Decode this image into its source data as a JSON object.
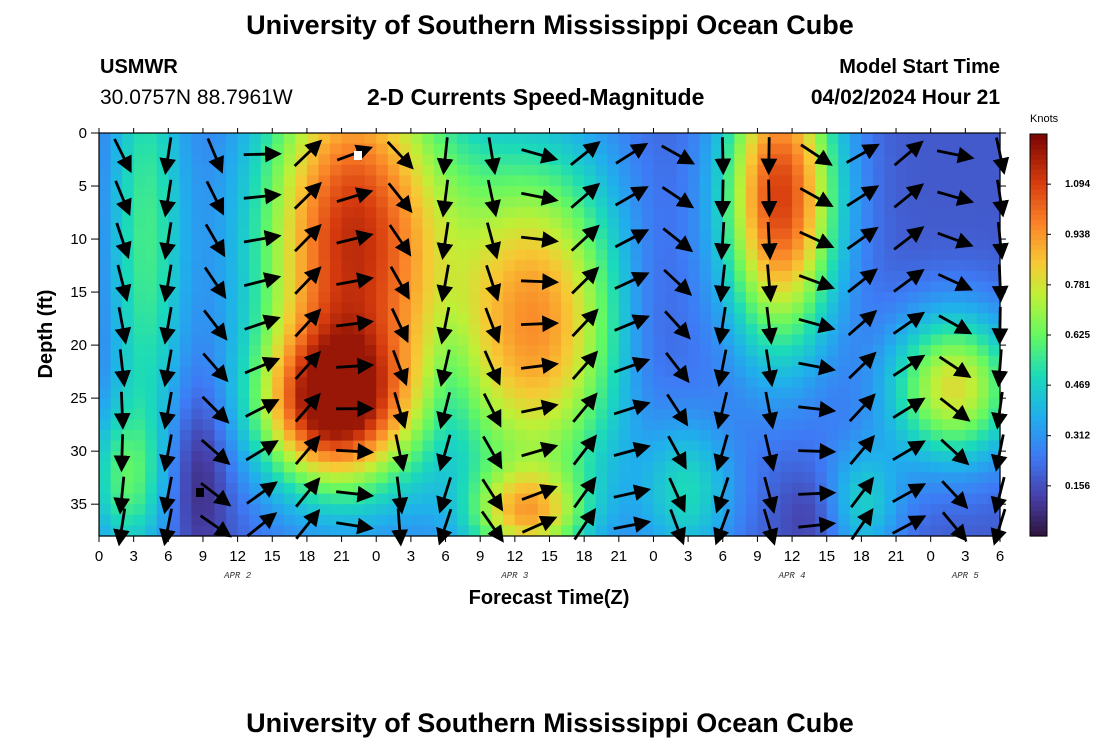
{
  "header": {
    "title": "University of Southern Mississippi Ocean Cube",
    "station": "USMWR",
    "coordinates": "30.0757N  88.7961W",
    "subtitle": "2-D Currents Speed-Magnitude",
    "model_label": "Model Start Time",
    "model_time": "04/02/2024 Hour 21"
  },
  "footer": {
    "title": "University of Southern Mississippi Ocean Cube"
  },
  "chart_data": {
    "type": "heatmap",
    "title": "2-D Currents Speed-Magnitude",
    "xlabel": "Forecast Time(Z)",
    "ylabel": "Depth (ft)",
    "x_tick_labels": [
      "0",
      "3",
      "6",
      "9",
      "12",
      "15",
      "18",
      "21",
      "0",
      "3",
      "6",
      "9",
      "12",
      "15",
      "18",
      "21",
      "0",
      "3",
      "6",
      "9",
      "12",
      "15",
      "18",
      "21",
      "0",
      "3",
      "6"
    ],
    "x_range_hours": [
      0,
      78
    ],
    "date_labels": [
      {
        "label": "APR 2",
        "hour": 12
      },
      {
        "label": "APR 3",
        "hour": 36
      },
      {
        "label": "APR 4",
        "hour": 60
      },
      {
        "label": "APR 5",
        "hour": 75
      }
    ],
    "y_ticks": [
      0,
      5,
      10,
      15,
      20,
      25,
      30,
      35
    ],
    "y_range_ft": [
      0,
      38
    ],
    "colorbar": {
      "units": "Knots",
      "ticks": [
        "0.156",
        "0.312",
        "0.469",
        "0.625",
        "0.781",
        "0.938",
        "1.094"
      ],
      "tick_values": [
        0.156,
        0.312,
        0.469,
        0.625,
        0.781,
        0.938,
        1.094
      ],
      "range": [
        0,
        1.25
      ]
    },
    "speed_blobs": [
      {
        "hour": 22,
        "depth": 10,
        "amp": 0.95,
        "sx": 6.0,
        "sy": 14
      },
      {
        "hour": 20,
        "depth": 26,
        "amp": 0.7,
        "sx": 4.5,
        "sy": 5
      },
      {
        "hour": 38,
        "depth": 18,
        "amp": 0.75,
        "sx": 5.5,
        "sy": 12
      },
      {
        "hour": 37,
        "depth": 36,
        "amp": 0.5,
        "sx": 3.5,
        "sy": 3
      },
      {
        "hour": 59,
        "depth": 6,
        "amp": 0.92,
        "sx": 3.5,
        "sy": 10
      },
      {
        "hour": 74,
        "depth": 24,
        "amp": 0.62,
        "sx": 4.0,
        "sy": 5
      },
      {
        "hour": 4,
        "depth": 10,
        "amp": 0.38,
        "sx": 2.5,
        "sy": 18
      },
      {
        "hour": 2,
        "depth": 33,
        "amp": 0.3,
        "sx": 2.5,
        "sy": 5
      },
      {
        "hour": 51,
        "depth": 34,
        "amp": 0.3,
        "sx": 3.0,
        "sy": 5
      },
      {
        "hour": 66,
        "depth": 35,
        "amp": 0.28,
        "sx": 2.5,
        "sy": 4
      }
    ],
    "speed_base": 0.18,
    "slow_blobs": [
      {
        "hour": 8.5,
        "depth": 32,
        "amp": 0.16,
        "sx": 2.0,
        "sy": 6
      },
      {
        "hour": 30.5,
        "depth": 24,
        "amp": 0.1,
        "sx": 1.5,
        "sy": 6
      },
      {
        "hour": 47.5,
        "depth": 18,
        "amp": 0.08,
        "sx": 2.0,
        "sy": 8
      },
      {
        "hour": 62,
        "depth": 36,
        "amp": 0.1,
        "sx": 2.0,
        "sy": 3
      }
    ],
    "arrow_hours": [
      2,
      6,
      10,
      14,
      18,
      22,
      26,
      30,
      34,
      38,
      42,
      46,
      50,
      54,
      58,
      62,
      66,
      70,
      74,
      78
    ],
    "arrow_depths": [
      2,
      6,
      10,
      14,
      18,
      22,
      26,
      30,
      34,
      37
    ]
  }
}
